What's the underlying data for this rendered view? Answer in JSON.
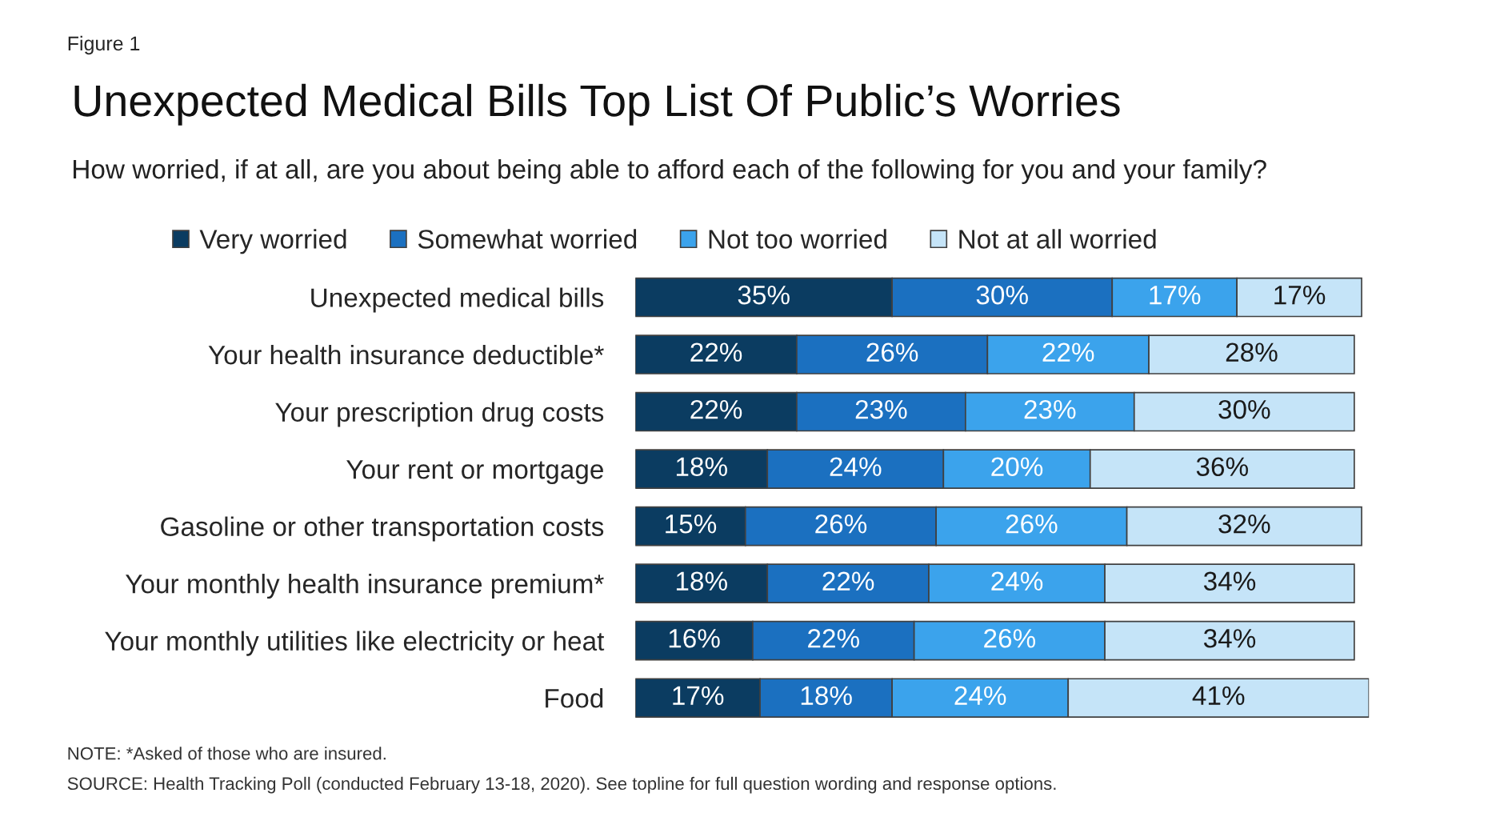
{
  "chart_data": {
    "type": "bar",
    "orientation": "horizontal",
    "stacked": true,
    "legend": "top",
    "grid": false,
    "title": "Unexpected Medical Bills Top List Of Public’s Worries",
    "subtitle": "How worried, if at all, are you about being able to afford each of the following for you and your family?",
    "categories": [
      "Unexpected medical bills",
      "Your health insurance deductible*",
      "Your prescription drug costs",
      "Your rent or mortgage",
      "Gasoline or other transportation costs",
      "Your monthly health insurance premium*",
      "Your monthly utilities like electricity or heat",
      "Food"
    ],
    "series": [
      {
        "name": "Very worried",
        "color": "#0b3c61",
        "values": [
          35,
          22,
          22,
          18,
          15,
          18,
          16,
          17
        ],
        "value_labels": [
          "35%",
          "22%",
          "22%",
          "18%",
          "15%",
          "18%",
          "16%",
          "17%"
        ]
      },
      {
        "name": "Somewhat worried",
        "color": "#1b70c0",
        "values": [
          30,
          26,
          23,
          24,
          26,
          22,
          22,
          18
        ],
        "value_labels": [
          "30%",
          "26%",
          "23%",
          "24%",
          "26%",
          "22%",
          "22%",
          "18%"
        ]
      },
      {
        "name": "Not too worried",
        "color": "#3ba3ec",
        "values": [
          17,
          22,
          23,
          20,
          26,
          24,
          26,
          24
        ],
        "value_labels": [
          "17%",
          "22%",
          "23%",
          "20%",
          "26%",
          "24%",
          "26%",
          "24%"
        ]
      },
      {
        "name": "Not at all worried",
        "color": "#c5e4f8",
        "values": [
          17,
          28,
          30,
          36,
          32,
          34,
          34,
          41
        ],
        "value_labels": [
          "17%",
          "28%",
          "30%",
          "36%",
          "32%",
          "34%",
          "34%",
          "41%"
        ]
      }
    ],
    "annotations": [
      "Figure 1",
      "NOTE: *Asked of those who are insured.",
      "SOURCE: Health Tracking Poll (conducted February 13-18, 2020). See topline for full question wording and response options."
    ]
  }
}
